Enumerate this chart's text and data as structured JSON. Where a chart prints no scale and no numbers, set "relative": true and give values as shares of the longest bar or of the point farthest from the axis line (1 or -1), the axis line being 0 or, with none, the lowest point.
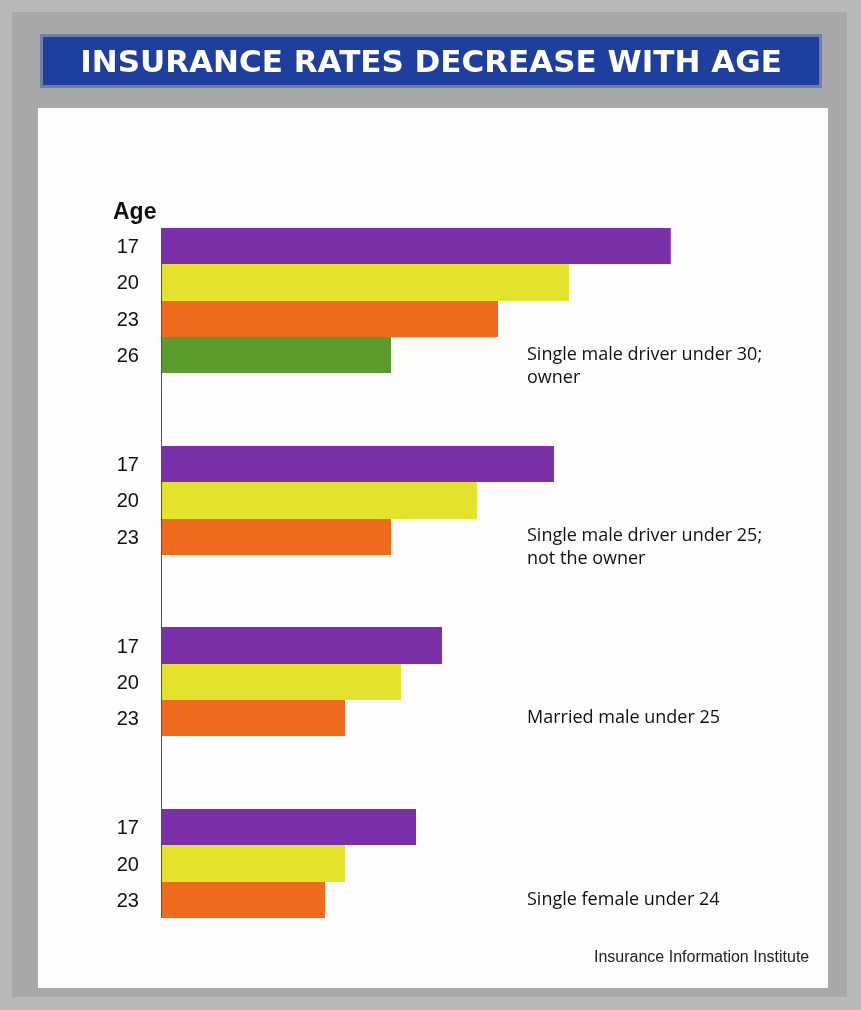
{
  "chart_data": {
    "type": "bar",
    "orientation": "horizontal",
    "relative": true,
    "title": "INSURANCE RATES DECREASE WITH AGE",
    "ylabel": "Age",
    "categories": [
      "17",
      "20",
      "23",
      "26",
      null,
      null,
      "17",
      "20",
      "23",
      null,
      null,
      "17",
      "20",
      "23",
      null,
      null,
      "17",
      "20",
      "23"
    ],
    "values": [
      1,
      0.8,
      0.66,
      0.45,
      null,
      null,
      0.77,
      0.62,
      0.45,
      null,
      null,
      0.55,
      0.47,
      0.36,
      null,
      null,
      0.5,
      0.36,
      0.32
    ],
    "colors": [
      "#7b2fa8",
      "#e3e22c",
      "#ee6a1c",
      "#5b9a2c",
      null,
      null,
      "#7b2fa8",
      "#e3e22c",
      "#ee6a1c",
      null,
      null,
      "#7b2fa8",
      "#e3e22c",
      "#ee6a1c",
      null,
      null,
      "#7b2fa8",
      "#e3e22c",
      "#ee6a1c"
    ],
    "annotations": [
      "Single male driver under 30;\nowner",
      "Single male driver under 25;\nnot the owner",
      "Married male under 25",
      "Single female under 24",
      "Insurance Information Institute"
    ],
    "legend": false
  }
}
